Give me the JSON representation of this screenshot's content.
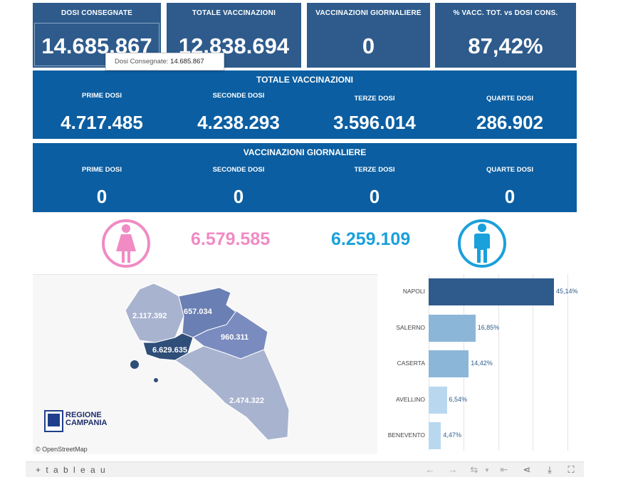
{
  "kpis": [
    {
      "label": "DOSI  CONSEGNATE",
      "value": "14.685.867"
    },
    {
      "label": "TOTALE VACCINAZIONI",
      "value": "12.838.694"
    },
    {
      "label": "VACCINAZIONI GIORNALIERE",
      "value": "0"
    },
    {
      "label": "% VACC. TOT. vs DOSI CONS.",
      "value": "87,42%"
    }
  ],
  "tooltip": {
    "label": "Dosi Consegnate:",
    "value": "14.685.867"
  },
  "totale": {
    "title": "TOTALE VACCINAZIONI",
    "cols": [
      {
        "label": "PRIME DOSI",
        "value": "4.717.485"
      },
      {
        "label": "SECONDE DOSI",
        "value": "4.238.293"
      },
      {
        "label": "TERZE DOSI",
        "value": "3.596.014"
      },
      {
        "label": "QUARTE DOSI",
        "value": "286.902"
      }
    ]
  },
  "giornaliere": {
    "title": "VACCINAZIONI GIORNALIERE",
    "cols": [
      {
        "label": "PRIME DOSI",
        "value": "0"
      },
      {
        "label": "SECONDE DOSI",
        "value": "0"
      },
      {
        "label": "TERZE DOSI",
        "value": "0"
      },
      {
        "label": "QUARTE DOSI",
        "value": "0"
      }
    ]
  },
  "gender": {
    "female": "6.579.585",
    "male": "6.259.109",
    "female_color": "#f08bc4",
    "male_color": "#1aa0db",
    "female_icon": "female-person-icon",
    "male_icon": "male-person-icon"
  },
  "map": {
    "labels": {
      "caserta": "2.117.392",
      "benevento": "657.034",
      "avellino": "960.311",
      "napoli": "6.629.635",
      "salerno": "2.474.322"
    },
    "attribution": "© OpenStreetMap",
    "logo": {
      "line1": "REGIONE",
      "line2": "CAMPANIA"
    }
  },
  "chart_data": {
    "type": "bar",
    "orientation": "horizontal",
    "categories": [
      "NAPOLI",
      "SALERNO",
      "CASERTA",
      "AVELLINO",
      "BENEVENTO"
    ],
    "values": [
      45.14,
      16.85,
      14.42,
      6.54,
      4.47
    ],
    "labels": [
      "45,14%",
      "16,85%",
      "14,42%",
      "6,54%",
      "4,47%"
    ],
    "colors": [
      "#2e5b8c",
      "#8bb6d8",
      "#8bb6d8",
      "#b9d8ef",
      "#b9d8ef"
    ],
    "xlim": [
      0,
      50
    ],
    "grid": true
  },
  "footer": {
    "brand": "+ t a b l e a u",
    "icons": [
      "undo-icon",
      "redo-icon",
      "revert-icon",
      "reset-icon",
      "share-icon",
      "download-icon",
      "fullscreen-icon"
    ]
  }
}
